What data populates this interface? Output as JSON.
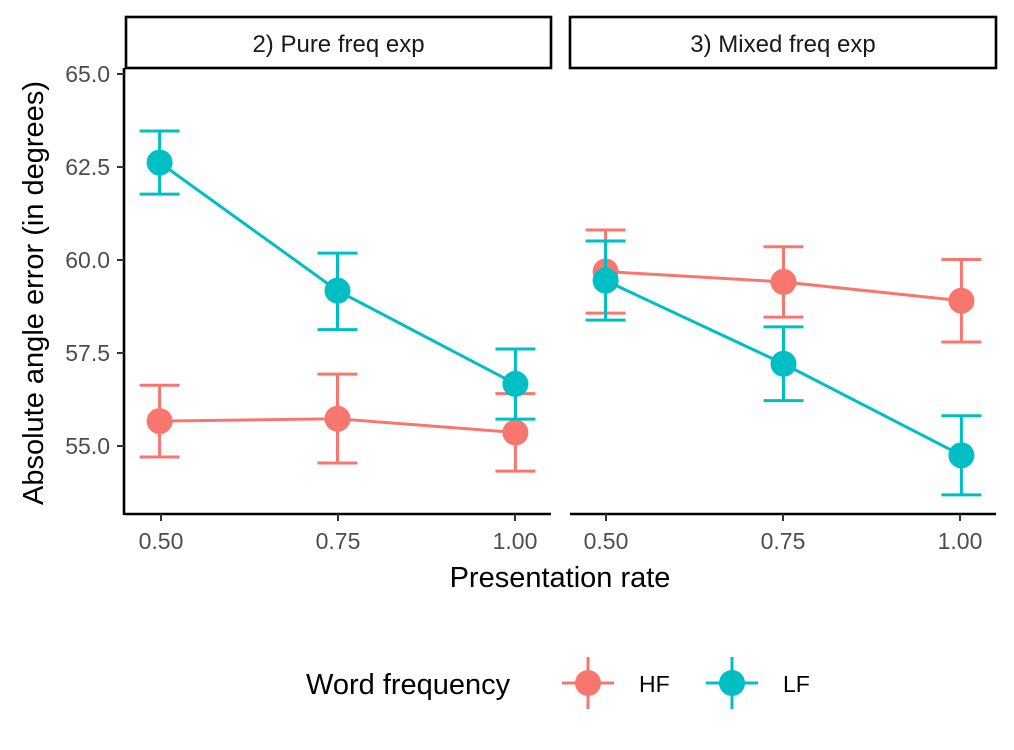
{
  "chart_data": {
    "type": "line",
    "xlabel": "Presentation rate",
    "ylabel": "Absolute angle error (in degrees)",
    "x_ticks": [
      "0.50",
      "0.75",
      "1.00"
    ],
    "y_ticks": [
      "55.0",
      "57.5",
      "60.0",
      "62.5",
      "65.0"
    ],
    "xlim": [
      0.45,
      1.05
    ],
    "ylim": [
      53.2,
      66.5
    ],
    "grid": false,
    "legend": {
      "title": "Word frequency",
      "position": "bottom",
      "entries": [
        {
          "name": "HF",
          "color": "#F8766D"
        },
        {
          "name": "LF",
          "color": "#00BFC4"
        }
      ]
    },
    "panels": [
      {
        "label": "2) Pure freq exp",
        "series": [
          {
            "name": "HF",
            "x": [
              0.5,
              0.75,
              1.0
            ],
            "y": [
              55.97,
              56.04,
              55.63
            ],
            "ymin": [
              54.9,
              54.72,
              54.48
            ],
            "ymax": [
              57.04,
              57.37,
              56.79
            ]
          },
          {
            "name": "LF",
            "x": [
              0.5,
              0.75,
              1.0
            ],
            "y": [
              63.68,
              59.86,
              57.08
            ],
            "ymin": [
              62.74,
              58.7,
              56.03
            ],
            "ymax": [
              64.62,
              60.98,
              58.12
            ]
          }
        ]
      },
      {
        "label": "3) Mixed freq exp",
        "series": [
          {
            "name": "HF",
            "x": [
              0.5,
              0.75,
              1.0
            ],
            "y": [
              60.43,
              60.12,
              59.56
            ],
            "ymin": [
              59.19,
              59.07,
              58.33
            ],
            "ymax": [
              61.67,
              61.17,
              60.79
            ]
          },
          {
            "name": "LF",
            "x": [
              0.5,
              0.75,
              1.0
            ],
            "y": [
              60.16,
              57.68,
              54.95
            ],
            "ymin": [
              58.98,
              56.58,
              53.77
            ],
            "ymax": [
              61.34,
              58.78,
              56.13
            ]
          }
        ]
      }
    ]
  }
}
